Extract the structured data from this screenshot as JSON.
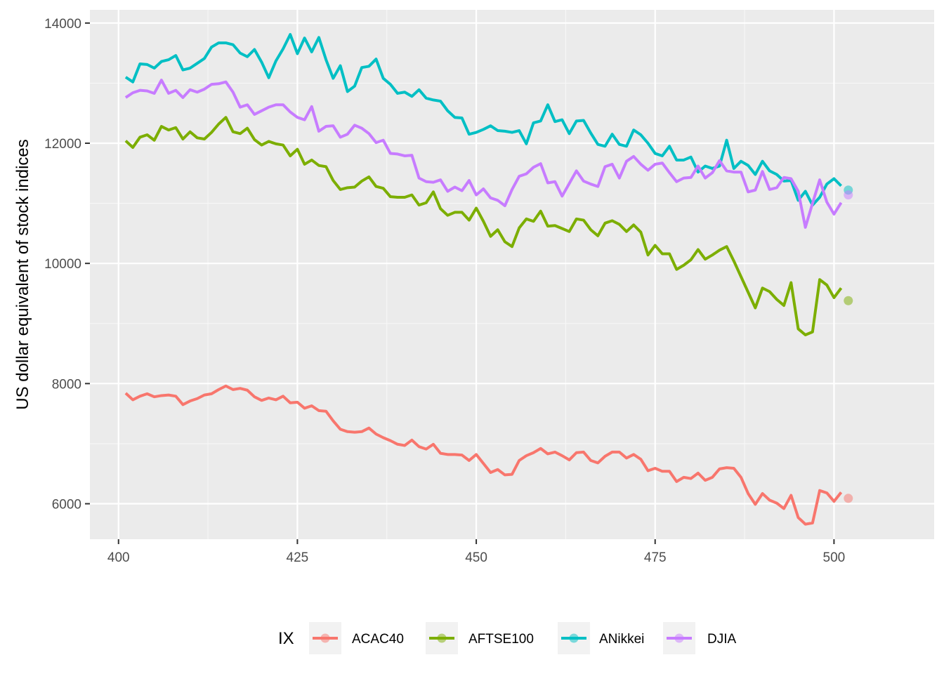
{
  "chart_data": {
    "type": "line",
    "xlabel": "",
    "ylabel": "US dollar equivalent of stock indices",
    "xlim": [
      396,
      514
    ],
    "ylim": [
      5410,
      14220
    ],
    "x_ticks": [
      400,
      425,
      450,
      475,
      500
    ],
    "y_ticks": [
      6000,
      8000,
      10000,
      12000,
      14000
    ],
    "grid": true,
    "legend": {
      "title": "IX",
      "position": "bottom"
    },
    "x": [
      401,
      402,
      403,
      404,
      405,
      406,
      407,
      408,
      409,
      410,
      411,
      412,
      413,
      414,
      415,
      416,
      417,
      418,
      419,
      420,
      421,
      422,
      423,
      424,
      425,
      426,
      427,
      428,
      429,
      430,
      431,
      432,
      433,
      434,
      435,
      436,
      437,
      438,
      439,
      440,
      441,
      442,
      443,
      444,
      445,
      446,
      447,
      448,
      449,
      450,
      451,
      452,
      453,
      454,
      455,
      456,
      457,
      458,
      459,
      460,
      461,
      462,
      463,
      464,
      465,
      466,
      467,
      468,
      469,
      470,
      471,
      472,
      473,
      474,
      475,
      476,
      477,
      478,
      479,
      480,
      481,
      482,
      483,
      484,
      485,
      486,
      487,
      488,
      489,
      490,
      491,
      492,
      493,
      494,
      495,
      496,
      497,
      498,
      499,
      500,
      501
    ],
    "series": [
      {
        "name": "ACAC40",
        "color": "#F8766D",
        "forecast_x": 502,
        "forecast": 6090,
        "values": [
          7840,
          7730,
          7790,
          7830,
          7780,
          7800,
          7810,
          7790,
          7650,
          7710,
          7750,
          7810,
          7830,
          7900,
          7960,
          7900,
          7920,
          7890,
          7780,
          7720,
          7760,
          7730,
          7790,
          7680,
          7690,
          7590,
          7630,
          7550,
          7540,
          7380,
          7240,
          7200,
          7190,
          7200,
          7260,
          7160,
          7100,
          7050,
          6990,
          6970,
          7060,
          6950,
          6910,
          6990,
          6840,
          6820,
          6820,
          6810,
          6720,
          6820,
          6670,
          6520,
          6570,
          6480,
          6490,
          6720,
          6800,
          6850,
          6920,
          6830,
          6860,
          6800,
          6730,
          6850,
          6860,
          6720,
          6680,
          6790,
          6860,
          6860,
          6760,
          6820,
          6740,
          6550,
          6590,
          6540,
          6540,
          6370,
          6440,
          6420,
          6510,
          6390,
          6440,
          6580,
          6600,
          6590,
          6440,
          6170,
          5990,
          6170,
          6060,
          6010,
          5920,
          6140,
          5770,
          5660,
          5680,
          6220,
          6180,
          6040,
          6190
        ]
      },
      {
        "name": "AFTSE100",
        "color": "#7CAE00",
        "forecast_x": 502,
        "forecast": 9380,
        "values": [
          12040,
          11930,
          12100,
          12140,
          12050,
          12280,
          12220,
          12260,
          12070,
          12190,
          12090,
          12070,
          12180,
          12320,
          12430,
          12190,
          12160,
          12250,
          12060,
          11970,
          12030,
          11990,
          11970,
          11790,
          11900,
          11650,
          11720,
          11630,
          11610,
          11380,
          11230,
          11260,
          11270,
          11370,
          11440,
          11280,
          11250,
          11110,
          11100,
          11100,
          11140,
          10970,
          11010,
          11190,
          10910,
          10800,
          10850,
          10850,
          10720,
          10920,
          10700,
          10450,
          10560,
          10360,
          10280,
          10590,
          10740,
          10700,
          10870,
          10620,
          10630,
          10580,
          10530,
          10740,
          10720,
          10560,
          10460,
          10670,
          10710,
          10650,
          10530,
          10640,
          10520,
          10140,
          10300,
          10160,
          10160,
          9900,
          9970,
          10060,
          10230,
          10070,
          10140,
          10220,
          10280,
          10040,
          9780,
          9520,
          9260,
          9590,
          9530,
          9400,
          9300,
          9680,
          8910,
          8810,
          8860,
          9730,
          9640,
          9430,
          9590
        ]
      },
      {
        "name": "ANikkei",
        "color": "#00BFC4",
        "forecast_x": 502,
        "forecast": 11220,
        "values": [
          13100,
          13020,
          13320,
          13310,
          13250,
          13360,
          13390,
          13460,
          13220,
          13250,
          13330,
          13410,
          13600,
          13670,
          13670,
          13640,
          13500,
          13440,
          13560,
          13350,
          13090,
          13370,
          13570,
          13810,
          13490,
          13750,
          13520,
          13760,
          13390,
          13080,
          13290,
          12860,
          12950,
          13260,
          13280,
          13400,
          13080,
          12980,
          12830,
          12850,
          12780,
          12890,
          12750,
          12720,
          12700,
          12540,
          12430,
          12420,
          12150,
          12180,
          12230,
          12290,
          12210,
          12200,
          12180,
          12210,
          11990,
          12340,
          12370,
          12640,
          12360,
          12390,
          12160,
          12370,
          12380,
          12170,
          11980,
          11950,
          12150,
          11980,
          11950,
          12220,
          12140,
          12000,
          11830,
          11790,
          11950,
          11720,
          11720,
          11770,
          11520,
          11620,
          11580,
          11620,
          12050,
          11580,
          11700,
          11630,
          11480,
          11700,
          11540,
          11480,
          11370,
          11380,
          11050,
          11200,
          10970,
          11100,
          11320,
          11410,
          11290
        ]
      },
      {
        "name": "DJIA",
        "color": "#C77CFF",
        "forecast_x": 502,
        "forecast": 11140,
        "values": [
          12760,
          12840,
          12880,
          12870,
          12830,
          13050,
          12830,
          12880,
          12760,
          12890,
          12850,
          12900,
          12980,
          12990,
          13020,
          12850,
          12600,
          12640,
          12480,
          12540,
          12600,
          12640,
          12640,
          12520,
          12430,
          12390,
          12610,
          12200,
          12280,
          12290,
          12100,
          12150,
          12300,
          12250,
          12160,
          12010,
          12050,
          11830,
          11820,
          11790,
          11800,
          11420,
          11360,
          11350,
          11390,
          11200,
          11270,
          11210,
          11380,
          11140,
          11240,
          11090,
          11050,
          10960,
          11230,
          11450,
          11490,
          11600,
          11660,
          11340,
          11360,
          11120,
          11330,
          11540,
          11370,
          11320,
          11280,
          11610,
          11650,
          11420,
          11700,
          11780,
          11650,
          11550,
          11650,
          11670,
          11510,
          11360,
          11420,
          11430,
          11620,
          11420,
          11510,
          11710,
          11540,
          11520,
          11520,
          11190,
          11220,
          11530,
          11230,
          11260,
          11430,
          11410,
          11200,
          10600,
          11000,
          11390,
          11020,
          10820,
          11010
        ]
      }
    ]
  }
}
